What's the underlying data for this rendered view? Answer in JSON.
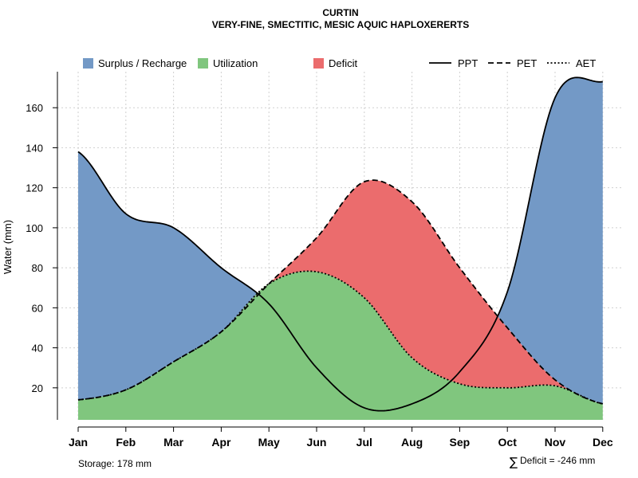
{
  "chart_data": {
    "type": "area",
    "title": "CURTIN",
    "subtitle": "VERY-FINE, SMECTITIC, MESIC AQUIC HAPLOXERERTS",
    "xlabel": "",
    "ylabel": "Water (mm)",
    "categories": [
      "Jan",
      "Feb",
      "Mar",
      "Apr",
      "May",
      "Jun",
      "Jul",
      "Aug",
      "Sep",
      "Oct",
      "Nov",
      "Dec"
    ],
    "y_ticks": [
      20,
      40,
      60,
      80,
      100,
      120,
      140,
      160
    ],
    "ylim": [
      4,
      178
    ],
    "grid": true,
    "series": [
      {
        "name": "PPT",
        "style": "solid",
        "values": [
          138,
          107,
          100,
          80,
          62,
          30,
          10,
          12,
          28,
          68,
          165,
          173
        ]
      },
      {
        "name": "PET",
        "style": "dashed",
        "values": [
          14,
          19,
          33,
          48,
          72,
          95,
          123,
          113,
          80,
          50,
          24,
          12
        ]
      },
      {
        "name": "AET",
        "style": "dotted",
        "values": [
          14,
          19,
          33,
          48,
          72,
          78,
          65,
          35,
          22,
          20,
          21,
          12
        ]
      }
    ],
    "legend": {
      "position": "top",
      "fills": [
        {
          "label": "Surplus / Recharge",
          "color": "#7399C6"
        },
        {
          "label": "Utilization",
          "color": "#80C67E"
        },
        {
          "label": "Deficit",
          "color": "#EB6C6D"
        }
      ],
      "lines": [
        {
          "label": "PPT",
          "style": "solid"
        },
        {
          "label": "PET",
          "style": "dashed"
        },
        {
          "label": "AET",
          "style": "dotted"
        }
      ]
    },
    "annotations": {
      "storage": "Storage: 178 mm",
      "deficit_symbol": "∑",
      "deficit": "Deficit = -246 mm"
    }
  }
}
